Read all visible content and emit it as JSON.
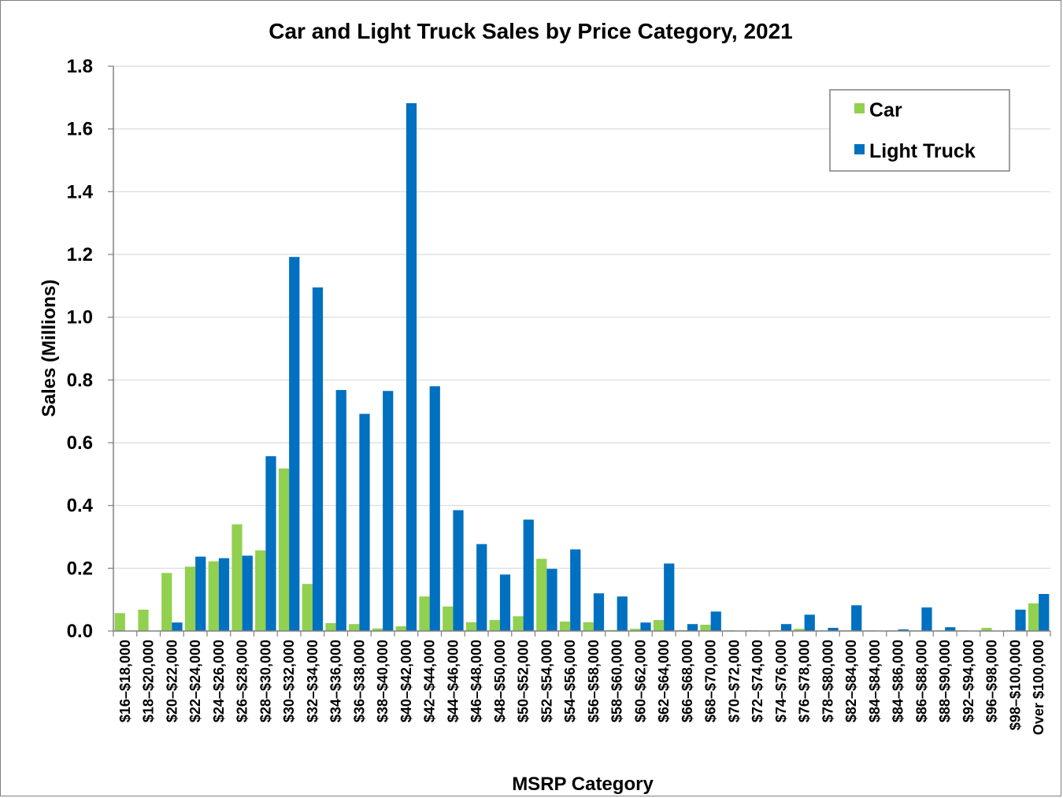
{
  "chart_data": {
    "type": "bar",
    "title": "Car and Light Truck Sales by Price Category, 2021",
    "xlabel": "MSRP Category",
    "ylabel": "Sales (Millions)",
    "ylim": [
      0,
      1.8
    ],
    "yticks": [
      "0.0",
      "0.2",
      "0.4",
      "0.6",
      "0.8",
      "1.0",
      "1.2",
      "1.4",
      "1.6",
      "1.8"
    ],
    "grid": true,
    "legend_position": "top-right",
    "categories": [
      "$16–$18,000",
      "$18–$20,000",
      "$20–$22,000",
      "$22–$24,000",
      "$24–$26,000",
      "$26–$28,000",
      "$28–$30,000",
      "$30–$32,000",
      "$32–$34,000",
      "$34–$36,000",
      "$36–$38,000",
      "$38–$40,000",
      "$40–$42,000",
      "$42–$44,000",
      "$44–$46,000",
      "$46–$48,000",
      "$48–$50,000",
      "$50–$52,000",
      "$52–$54,000",
      "$54–$56,000",
      "$56–$58,000",
      "$58–$60,000",
      "$60–$62,000",
      "$62–$64,000",
      "$66–$68,000",
      "$68–$70,000",
      "$70–$72,000",
      "$72–$74,000",
      "$74–$76,000",
      "$76–$78,000",
      "$78–$80,000",
      "$82–$84,000",
      "$84–$84,000",
      "$84–$86,000",
      "$86–$88,000",
      "$88–$90,000",
      "$92–$94,000",
      "$96–$98,000",
      "$98–$100,000",
      "Over $100,000"
    ],
    "series": [
      {
        "name": "Car",
        "color": "#92d050",
        "values": [
          0.057,
          0.068,
          0.185,
          0.205,
          0.222,
          0.34,
          0.257,
          0.518,
          0.15,
          0.025,
          0.022,
          0.008,
          0.015,
          0.11,
          0.078,
          0.028,
          0.035,
          0.047,
          0.23,
          0.03,
          0.028,
          0.003,
          0.007,
          0.035,
          0.003,
          0.02,
          0.002,
          0.002,
          0.002,
          0.007,
          0.002,
          0.002,
          0.002,
          0.002,
          0.002,
          0.002,
          0.002,
          0.01,
          0.002,
          0.088
        ]
      },
      {
        "name": "Light Truck",
        "color": "#0070c0",
        "values": [
          0.0,
          0.0,
          0.027,
          0.237,
          0.232,
          0.24,
          0.557,
          1.192,
          1.095,
          0.768,
          0.692,
          0.765,
          1.682,
          0.78,
          0.385,
          0.277,
          0.18,
          0.355,
          0.198,
          0.26,
          0.12,
          0.11,
          0.027,
          0.215,
          0.022,
          0.062,
          0.0,
          0.0,
          0.022,
          0.052,
          0.01,
          0.082,
          0.0,
          0.005,
          0.075,
          0.012,
          0.0,
          0.0,
          0.068,
          0.118
        ]
      }
    ]
  }
}
